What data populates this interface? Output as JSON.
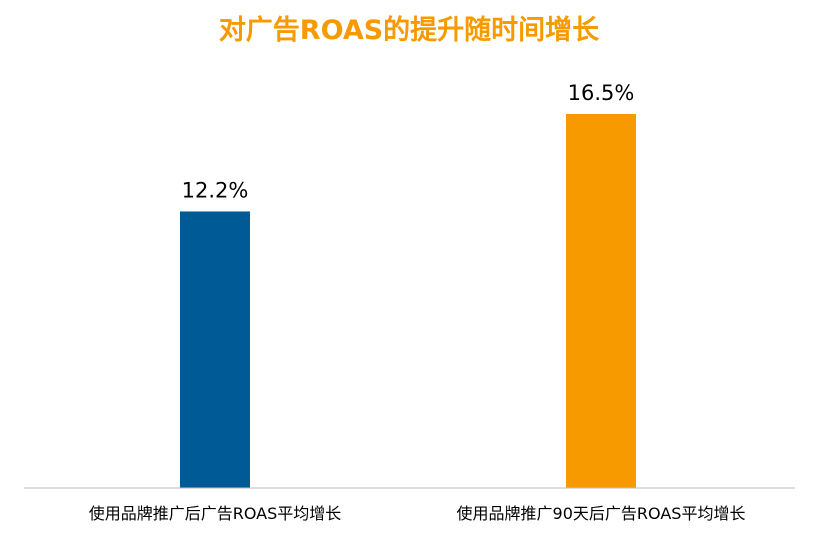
{
  "chart_data": {
    "type": "bar",
    "title": "对广告ROAS的提升随时间增长",
    "categories": [
      "使用品牌推广后广告ROAS平均增长",
      "使用品牌推广90天后广告ROAS平均增长"
    ],
    "values": [
      12.2,
      16.5
    ],
    "value_labels": [
      "12.2%",
      "16.5%"
    ],
    "unit": "%",
    "ylim": [
      0,
      18
    ],
    "grid": false,
    "legend": "none",
    "colors": [
      "#005a96",
      "#f79a00"
    ],
    "title_color": "#f79a00"
  }
}
